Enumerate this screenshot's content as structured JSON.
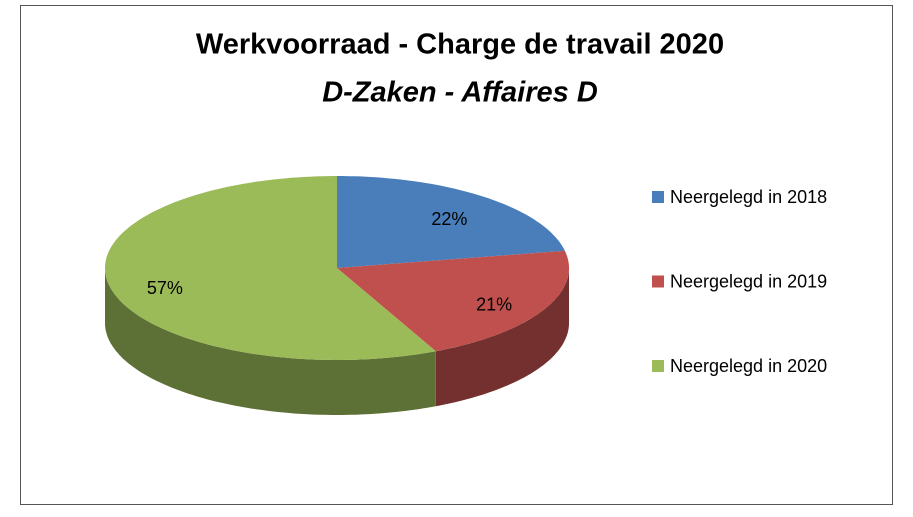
{
  "chart_data": {
    "type": "pie",
    "title": "Werkvoorraad - Charge de travail 2020",
    "subtitle": "D-Zaken - Affaires D",
    "categories": [
      "Neergelegd in 2018",
      "Neergelegd in 2019",
      "Neergelegd in 2020"
    ],
    "values": [
      22,
      21,
      57
    ],
    "value_labels": [
      "22%",
      "21%",
      "57%"
    ],
    "colors": [
      "#4a7ebb",
      "#c0504d",
      "#9bbb59"
    ],
    "legend": "right",
    "3d": true
  }
}
